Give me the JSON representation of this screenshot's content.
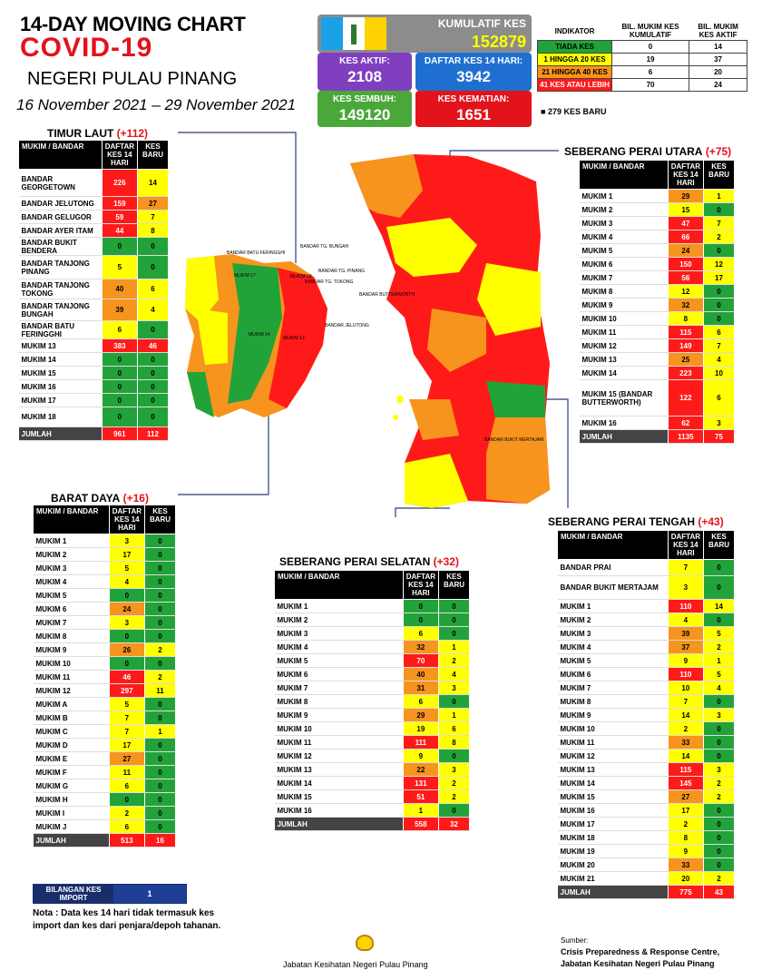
{
  "header": {
    "title": "14-DAY MOVING CHART",
    "covid": "COVID-19",
    "state": "NEGERI PULAU PINANG",
    "date": "16 November 2021 – 29 November 2021"
  },
  "stats": {
    "kumulatif": {
      "label": "KUMULATIF KES",
      "value": "152879"
    },
    "aktif": {
      "label": "KES AKTIF:",
      "value": "2108"
    },
    "daftar": {
      "label": "DAFTAR KES 14 HARI:",
      "value": "3942"
    },
    "sembuh": {
      "label": "KES SEMBUH:",
      "value": "149120"
    },
    "kematian": {
      "label": "KES KEMATIAN:",
      "value": "1651"
    }
  },
  "indicator": {
    "headers": [
      "INDIKATOR",
      "BIL. MUKIM KES KUMULATIF",
      "BIL. MUKIM KES AKTIF"
    ],
    "rows": [
      {
        "label": "TIADA KES",
        "a": "0",
        "b": "14",
        "color": "#22a33a"
      },
      {
        "label": "1 HINGGA 20 KES",
        "a": "19",
        "b": "37",
        "color": "#ffff00"
      },
      {
        "label": "21 HINGGA 40 KES",
        "a": "6",
        "b": "20",
        "color": "#f7941d"
      },
      {
        "label": "41 KES ATAU LEBIH",
        "a": "70",
        "b": "24",
        "color": "#ff1a1a"
      }
    ],
    "new_cases": "279 KES BARU"
  },
  "colors": {
    "green": "#22a33a",
    "yellow": "#ffff00",
    "orange": "#f7941d",
    "red": "#ff1a1a",
    "purple": "#7f3fbf",
    "blue": "#1f6fd1"
  },
  "sections": {
    "timur_laut": {
      "name": "TIMUR LAUT",
      "count": "(+112)",
      "headers": [
        "MUKIM / BANDAR",
        "DAFTAR KES 14 HARI",
        "KES BARU"
      ],
      "rows": [
        [
          "BANDAR GEORGETOWN",
          "226",
          "14"
        ],
        [
          "BANDAR JELUTONG",
          "159",
          "27"
        ],
        [
          "BANDAR GELUGOR",
          "59",
          "7"
        ],
        [
          "BANDAR AYER ITAM",
          "44",
          "8"
        ],
        [
          "BANDAR BUKIT BENDERA",
          "0",
          "0"
        ],
        [
          "BANDAR TANJONG PINANG",
          "5",
          "0"
        ],
        [
          "BANDAR TANJONG TOKONG",
          "40",
          "6"
        ],
        [
          "BANDAR TANJONG BUNGAH",
          "39",
          "4"
        ],
        [
          "BANDAR BATU FERINGGHI",
          "6",
          "0"
        ],
        [
          "MUKIM 13",
          "383",
          "46"
        ],
        [
          "MUKIM 14",
          "0",
          "0"
        ],
        [
          "MUKIM 15",
          "0",
          "0"
        ],
        [
          "MUKIM 16",
          "0",
          "0"
        ],
        [
          "MUKIM 17",
          "0",
          "0"
        ],
        [
          "MUKIM 18",
          "0",
          "0"
        ]
      ],
      "total": [
        "JUMLAH",
        "961",
        "112"
      ]
    },
    "barat_daya": {
      "name": "BARAT DAYA",
      "count": "(+16)",
      "headers": [
        "MUKIM / BANDAR",
        "DAFTAR KES 14 HARI",
        "KES BARU"
      ],
      "rows": [
        [
          "MUKIM 1",
          "3",
          "0"
        ],
        [
          "MUKIM 2",
          "17",
          "0"
        ],
        [
          "MUKIM 3",
          "5",
          "0"
        ],
        [
          "MUKIM 4",
          "4",
          "0"
        ],
        [
          "MUKIM 5",
          "0",
          "0"
        ],
        [
          "MUKIM 6",
          "24",
          "0"
        ],
        [
          "MUKIM 7",
          "3",
          "0"
        ],
        [
          "MUKIM 8",
          "0",
          "0"
        ],
        [
          "MUKIM 9",
          "26",
          "2"
        ],
        [
          "MUKIM 10",
          "0",
          "0"
        ],
        [
          "MUKIM 11",
          "46",
          "2"
        ],
        [
          "MUKIM 12",
          "297",
          "11"
        ],
        [
          "MUKIM A",
          "5",
          "0"
        ],
        [
          "MUKIM B",
          "7",
          "0"
        ],
        [
          "MUKIM C",
          "7",
          "1"
        ],
        [
          "MUKIM D",
          "17",
          "0"
        ],
        [
          "MUKIM E",
          "27",
          "0"
        ],
        [
          "MUKIM F",
          "11",
          "0"
        ],
        [
          "MUKIM G",
          "6",
          "0"
        ],
        [
          "MUKIM H",
          "0",
          "0"
        ],
        [
          "MUKIM I",
          "2",
          "0"
        ],
        [
          "MUKIM J",
          "6",
          "0"
        ]
      ],
      "total": [
        "JUMLAH",
        "513",
        "16"
      ]
    },
    "spu": {
      "name": "SEBERANG PERAI UTARA",
      "count": "(+75)",
      "headers": [
        "MUKIM / BANDAR",
        "DAFTAR KES 14 HARI",
        "KES BARU"
      ],
      "rows": [
        [
          "MUKIM 1",
          "29",
          "1"
        ],
        [
          "MUKIM 2",
          "15",
          "0"
        ],
        [
          "MUKIM 3",
          "47",
          "7"
        ],
        [
          "MUKIM 4",
          "66",
          "2"
        ],
        [
          "MUKIM 5",
          "24",
          "0"
        ],
        [
          "MUKIM 6",
          "150",
          "12"
        ],
        [
          "MUKIM 7",
          "56",
          "17"
        ],
        [
          "MUKIM 8",
          "12",
          "0"
        ],
        [
          "MUKIM 9",
          "32",
          "0"
        ],
        [
          "MUKIM 10",
          "8",
          "0"
        ],
        [
          "MUKIM 11",
          "115",
          "6"
        ],
        [
          "MUKIM 12",
          "149",
          "7"
        ],
        [
          "MUKIM 13",
          "25",
          "4"
        ],
        [
          "MUKIM 14",
          "223",
          "10"
        ],
        [
          "MUKIM 15 (BANDAR BUTTERWORTH)",
          "122",
          "6"
        ],
        [
          "MUKIM 16",
          "62",
          "3"
        ]
      ],
      "total": [
        "JUMLAH",
        "1135",
        "75"
      ]
    },
    "sps": {
      "name": "SEBERANG PERAI SELATAN",
      "count": "(+32)",
      "headers": [
        "MUKIM / BANDAR",
        "DAFTAR KES 14 HARI",
        "KES BARU"
      ],
      "rows": [
        [
          "MUKIM 1",
          "0",
          "0"
        ],
        [
          "MUKIM 2",
          "0",
          "0"
        ],
        [
          "MUKIM 3",
          "6",
          "0"
        ],
        [
          "MUKIM 4",
          "32",
          "1"
        ],
        [
          "MUKIM 5",
          "70",
          "2"
        ],
        [
          "MUKIM 6",
          "40",
          "4"
        ],
        [
          "MUKIM 7",
          "31",
          "3"
        ],
        [
          "MUKIM 8",
          "6",
          "0"
        ],
        [
          "MUKIM 9",
          "29",
          "1"
        ],
        [
          "MUKIM 10",
          "19",
          "6"
        ],
        [
          "MUKIM 11",
          "111",
          "8"
        ],
        [
          "MUKIM 12",
          "9",
          "0"
        ],
        [
          "MUKIM 13",
          "22",
          "3"
        ],
        [
          "MUKIM 14",
          "131",
          "2"
        ],
        [
          "MUKIM 15",
          "51",
          "2"
        ],
        [
          "MUKIM 16",
          "1",
          "0"
        ]
      ],
      "total": [
        "JUMLAH",
        "558",
        "32"
      ]
    },
    "spt": {
      "name": "SEBERANG PERAI TENGAH",
      "count": "(+43)",
      "headers": [
        "MUKIM / BANDAR",
        "DAFTAR KES 14 HARI",
        "KES BARU"
      ],
      "rows": [
        [
          "BANDAR PRAI",
          "7",
          "0"
        ],
        [
          "BANDAR BUKIT MERTAJAM",
          "3",
          "0"
        ],
        [
          "MUKIM 1",
          "110",
          "14"
        ],
        [
          "MUKIM 2",
          "4",
          "0"
        ],
        [
          "MUKIM 3",
          "39",
          "5"
        ],
        [
          "MUKIM 4",
          "37",
          "2"
        ],
        [
          "MUKIM 5",
          "9",
          "1"
        ],
        [
          "MUKIM 6",
          "110",
          "5"
        ],
        [
          "MUKIM 7",
          "10",
          "4"
        ],
        [
          "MUKIM 8",
          "7",
          "0"
        ],
        [
          "MUKIM 9",
          "14",
          "3"
        ],
        [
          "MUKIM 10",
          "2",
          "0"
        ],
        [
          "MUKIM 11",
          "33",
          "0"
        ],
        [
          "MUKIM 12",
          "14",
          "0"
        ],
        [
          "MUKIM 13",
          "115",
          "3"
        ],
        [
          "MUKIM 14",
          "145",
          "2"
        ],
        [
          "MUKIM 15",
          "27",
          "2"
        ],
        [
          "MUKIM 16",
          "17",
          "0"
        ],
        [
          "MUKIM 17",
          "2",
          "0"
        ],
        [
          "MUKIM 18",
          "8",
          "0"
        ],
        [
          "MUKIM 19",
          "9",
          "0"
        ],
        [
          "MUKIM 20",
          "33",
          "0"
        ],
        [
          "MUKIM 21",
          "20",
          "2"
        ]
      ],
      "total": [
        "JUMLAH",
        "775",
        "43"
      ]
    }
  },
  "import": {
    "label": "BILANGAN KES IMPORT",
    "value": "1"
  },
  "note": "Nota : Data kes 14 hari tidak termasuk kes import dan kes dari penjara/depoh tahanan.",
  "footer": {
    "dept": "Jabatan Kesihatan Negeri Pulau Pinang",
    "source_label": "Sumber:",
    "source1": "Crisis Preparedness & Response Centre,",
    "source2": "Jabatan Kesihatan Negeri Pulau Pinang"
  },
  "map": {
    "labels": [
      "BANDAR BATU FERINGGHI",
      "BANDAR TG. BUNGAH",
      "BANDAR TG. PINANG",
      "BANDAR TG. TOKONG",
      "BANDAR JELUTONG",
      "BANDAR BUTTERWORTH",
      "BANDAR BUKIT MERTAJAM",
      "MUKIM 13",
      "MUKIM 14",
      "MUKIM 17",
      "MUKIM 18"
    ]
  }
}
